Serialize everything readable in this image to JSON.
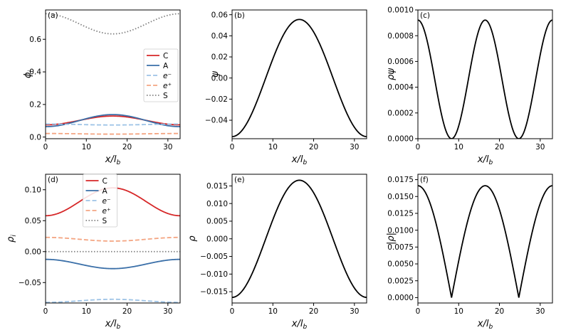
{
  "chart_data": [
    {
      "panel": "(a)",
      "type": "line",
      "xlabel": "x/l",
      "xlabel_sub": "b",
      "ylabel": "ϕ",
      "ylabel_sub": "i",
      "xlim": [
        0,
        33
      ],
      "ylim": [
        -0.01,
        0.78
      ],
      "xticks": [
        "0",
        "10",
        "20",
        "30"
      ],
      "xtick_values": [
        0,
        10,
        20,
        30
      ],
      "yticks": [
        "0.0",
        "0.2",
        "0.4",
        "0.6"
      ],
      "ytick_values": [
        0.0,
        0.2,
        0.4,
        0.6
      ],
      "legend": {
        "position": "center-right",
        "entries": [
          "C",
          "A",
          "e⁻",
          "e⁺",
          "S"
        ]
      },
      "series": [
        {
          "name": "C",
          "color": "#d62728",
          "dash": "solid",
          "base": 0.102,
          "amp": 0.027
        },
        {
          "name": "A",
          "color": "#3a6fa8",
          "dash": "solid",
          "base": 0.101,
          "amp": 0.037
        },
        {
          "name": "e⁻",
          "color": "#9dc3e6",
          "dash": "dashed",
          "base": 0.077,
          "amp": -0.003
        },
        {
          "name": "e⁺",
          "color": "#f4a582",
          "dash": "dashed",
          "base": 0.02,
          "amp": -0.002
        },
        {
          "name": "S",
          "color": "#7f7f7f",
          "dash": "dotted",
          "base": 0.695,
          "amp": -0.062
        }
      ]
    },
    {
      "panel": "(b)",
      "type": "line",
      "xlabel": "x/l",
      "xlabel_sub": "b",
      "ylabel": "ψ",
      "ylabel_sub": "",
      "xlim": [
        0,
        33
      ],
      "ylim": [
        -0.0575,
        0.0645
      ],
      "xticks": [
        "0",
        "10",
        "20",
        "30"
      ],
      "xtick_values": [
        0,
        10,
        20,
        30
      ],
      "yticks": [
        "−0.04",
        "−0.02",
        "0.00",
        "0.02",
        "0.04",
        "0.06"
      ],
      "ytick_values": [
        -0.04,
        -0.02,
        0.0,
        0.02,
        0.04,
        0.06
      ],
      "series": [
        {
          "name": "ψ",
          "color": "#000000",
          "dash": "solid",
          "base": 0.0,
          "amp": 0.0555
        }
      ]
    },
    {
      "panel": "(c)",
      "type": "line",
      "xlabel": "x/l",
      "xlabel_sub": "b",
      "ylabel": "ρψ",
      "ylabel_sub": "",
      "xlim": [
        0,
        33
      ],
      "ylim": [
        0.0,
        0.001
      ],
      "xticks": [
        "0",
        "10",
        "20",
        "30"
      ],
      "xtick_values": [
        0,
        10,
        20,
        30
      ],
      "yticks": [
        "0.0000",
        "0.0002",
        "0.0004",
        "0.0006",
        "0.0008",
        "0.0010"
      ],
      "ytick_values": [
        0.0,
        0.0002,
        0.0004,
        0.0006,
        0.0008,
        0.001
      ],
      "series": [
        {
          "name": "ρψ",
          "color": "#000000",
          "dash": "solid",
          "kind": "product",
          "ampA": 0.0555,
          "ampB": 0.0166
        }
      ]
    },
    {
      "panel": "(d)",
      "type": "line",
      "xlabel": "x/l",
      "xlabel_sub": "b",
      "ylabel": "ρ",
      "ylabel_sub": "i",
      "xlim": [
        0,
        33
      ],
      "ylim": [
        -0.083,
        0.125
      ],
      "xticks": [
        "0",
        "10",
        "20",
        "30"
      ],
      "xtick_values": [
        0,
        10,
        20,
        30
      ],
      "yticks": [
        "−0.05",
        "0.00",
        "0.05",
        "0.10"
      ],
      "ytick_values": [
        -0.05,
        0.0,
        0.05,
        0.1
      ],
      "legend": {
        "position": "top-center",
        "entries": [
          "C",
          "A",
          "e⁻",
          "e⁺",
          "S"
        ]
      },
      "series": [
        {
          "name": "C",
          "color": "#d62728",
          "dash": "solid",
          "base": 0.0805,
          "amp": 0.0225
        },
        {
          "name": "A",
          "color": "#3a6fa8",
          "dash": "solid",
          "base": -0.02,
          "amp": -0.0075
        },
        {
          "name": "e⁻",
          "color": "#9dc3e6",
          "dash": "dashed",
          "base": -0.0795,
          "amp": 0.0025
        },
        {
          "name": "e⁺",
          "color": "#f4a582",
          "dash": "dashed",
          "base": 0.02,
          "amp": -0.003
        },
        {
          "name": "S",
          "color": "#7f7f7f",
          "dash": "dotted",
          "base": 0.0,
          "amp": 0.0
        }
      ]
    },
    {
      "panel": "(e)",
      "type": "line",
      "xlabel": "x/l",
      "xlabel_sub": "b",
      "ylabel": "ρ",
      "ylabel_sub": "",
      "xlim": [
        0,
        33
      ],
      "ylim": [
        -0.0182,
        0.0183
      ],
      "xticks": [
        "0",
        "10",
        "20",
        "30"
      ],
      "xtick_values": [
        0,
        10,
        20,
        30
      ],
      "yticks": [
        "−0.015",
        "−0.010",
        "−0.005",
        "0.000",
        "0.005",
        "0.010",
        "0.015"
      ],
      "ytick_values": [
        -0.015,
        -0.01,
        -0.005,
        0.0,
        0.005,
        0.01,
        0.015
      ],
      "series": [
        {
          "name": "ρ",
          "color": "#000000",
          "dash": "solid",
          "base": 0.0,
          "amp": 0.0166
        }
      ]
    },
    {
      "panel": "(f)",
      "type": "line",
      "xlabel": "x/l",
      "xlabel_sub": "b",
      "ylabel": "|ρ|",
      "ylabel_sub": "",
      "xlim": [
        0,
        33
      ],
      "ylim": [
        -0.0008,
        0.0183
      ],
      "xticks": [
        "0",
        "10",
        "20",
        "30"
      ],
      "xtick_values": [
        0,
        10,
        20,
        30
      ],
      "yticks": [
        "0.0000",
        "0.0025",
        "0.0050",
        "0.0075",
        "0.0100",
        "0.0125",
        "0.0150",
        "0.0175"
      ],
      "ytick_values": [
        0.0,
        0.0025,
        0.005,
        0.0075,
        0.01,
        0.0125,
        0.015,
        0.0175
      ],
      "series": [
        {
          "name": "|ρ|",
          "color": "#000000",
          "dash": "solid",
          "kind": "abs",
          "amp": 0.0166
        }
      ]
    }
  ]
}
